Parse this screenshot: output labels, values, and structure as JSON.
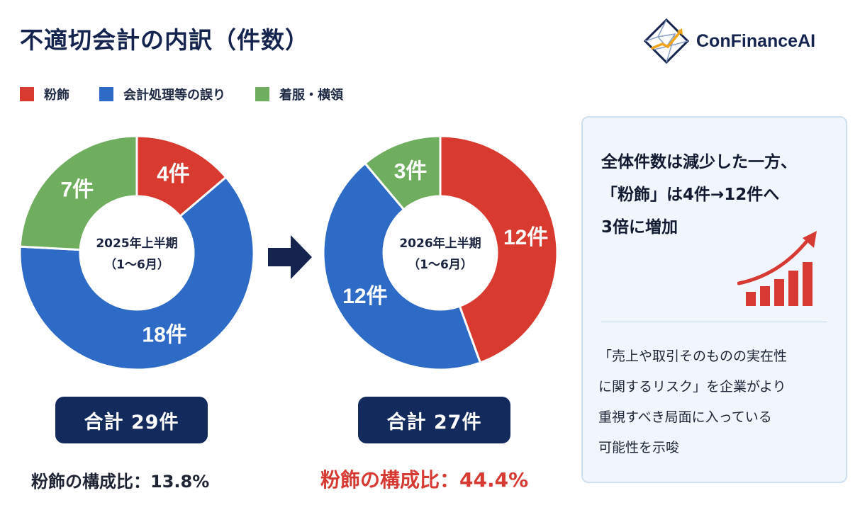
{
  "title": "不適切会計の内訳（件数）",
  "brand": {
    "name": "ConFinanceAI"
  },
  "legend": [
    {
      "label": "粉飾",
      "color": "#d93a2f"
    },
    {
      "label": "会計処理等の誤り",
      "color": "#2e6bc6"
    },
    {
      "label": "着服・横領",
      "color": "#6fae5e"
    }
  ],
  "chart_data": [
    {
      "type": "pie",
      "center_label_line1": "2025年上半期",
      "center_label_line2": "（1〜6月）",
      "slices": [
        {
          "category": "粉飾",
          "value": 4,
          "label": "4件",
          "color": "#d93a2f"
        },
        {
          "category": "会計処理等の誤り",
          "value": 18,
          "label": "18件",
          "color": "#2e6bc6"
        },
        {
          "category": "着服・横領",
          "value": 7,
          "label": "7件",
          "color": "#6fae5e"
        }
      ],
      "total_label": "合計 29件",
      "ratio_label": "粉飾の構成比：13.8%"
    },
    {
      "type": "pie",
      "center_label_line1": "2026年上半期",
      "center_label_line2": "（1〜6月）",
      "slices": [
        {
          "category": "粉飾",
          "value": 12,
          "label": "12件",
          "color": "#d93a2f"
        },
        {
          "category": "会計処理等の誤り",
          "value": 12,
          "label": "12件",
          "color": "#2e6bc6"
        },
        {
          "category": "着服・横領",
          "value": 3,
          "label": "3件",
          "color": "#6fae5e"
        }
      ],
      "total_label": "合計 27件",
      "ratio_label": "粉飾の構成比：44.4%"
    }
  ],
  "panel": {
    "headline_lines": [
      "全体件数は減少した一方、",
      "「粉飾」は4件→12件へ",
      "3倍に増加"
    ],
    "body_lines": [
      "「売上や取引そのものの実在性",
      "に関するリスク」を企業がより",
      "重視すべき局面に入っている",
      "可能性を示唆"
    ]
  },
  "colors": {
    "navy": "#122a5c",
    "accent_red": "#d63a32"
  }
}
